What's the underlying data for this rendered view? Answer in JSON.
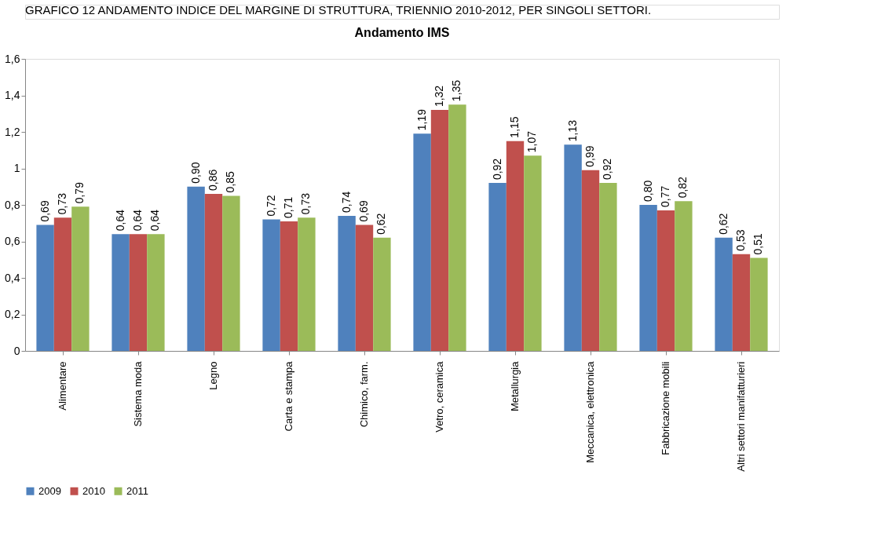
{
  "chart_data": {
    "type": "bar",
    "title": "Andamento IMS",
    "annotations": [
      "GRAFICO 12 ANDAMENTO INDICE DEL MARGINE DI STRUTTURA, TRIENNIO 2010-2012, PER SINGOLI SETTORI."
    ],
    "categories": [
      "Alimentare",
      "Sistema moda",
      "Legno",
      "Carta e stampa",
      "Chimico, farm.",
      "Vetro, ceramica",
      "Metallurgia",
      "Meccanica, elettronica",
      "Fabbricazione mobili",
      "Altri settori manifatturieri"
    ],
    "series": [
      {
        "name": "2009",
        "color": "#4f81bd",
        "values": [
          0.69,
          0.64,
          0.9,
          0.72,
          0.74,
          1.19,
          0.92,
          1.13,
          0.8,
          0.62
        ],
        "value_labels": [
          "0,69",
          "0,64",
          "0,90",
          "0,72",
          "0,74",
          "1,19",
          "0,92",
          "1,13",
          "0,80",
          "0,62"
        ]
      },
      {
        "name": "2010",
        "color": "#c0504d",
        "values": [
          0.73,
          0.64,
          0.86,
          0.71,
          0.69,
          1.32,
          1.15,
          0.99,
          0.77,
          0.53
        ],
        "value_labels": [
          "0,73",
          "0,64",
          "0,86",
          "0,71",
          "0,69",
          "1,32",
          "1,15",
          "0,99",
          "0,77",
          "0,53"
        ]
      },
      {
        "name": "2011",
        "color": "#9bbb59",
        "values": [
          0.79,
          0.64,
          0.85,
          0.73,
          0.62,
          1.35,
          1.07,
          0.92,
          0.82,
          0.51
        ],
        "value_labels": [
          "0,79",
          "0,64",
          "0,85",
          "0,73",
          "0,62",
          "1,35",
          "1,07",
          "0,92",
          "0,82",
          "0,51"
        ]
      }
    ],
    "ylim": [
      0,
      1.6
    ],
    "yticks": [
      0,
      {
        "value": 0.2,
        "label": "0,2"
      },
      {
        "value": 0.4,
        "label": "0,4"
      },
      {
        "value": 0.6,
        "label": "0,6"
      },
      {
        "value": 0.8,
        "label": "0,8"
      },
      1,
      {
        "value": 1.2,
        "label": "1,2"
      },
      {
        "value": 1.4,
        "label": "1,4"
      },
      {
        "value": 1.6,
        "label": "1,6"
      }
    ],
    "grid": false,
    "legend": "bottom"
  }
}
